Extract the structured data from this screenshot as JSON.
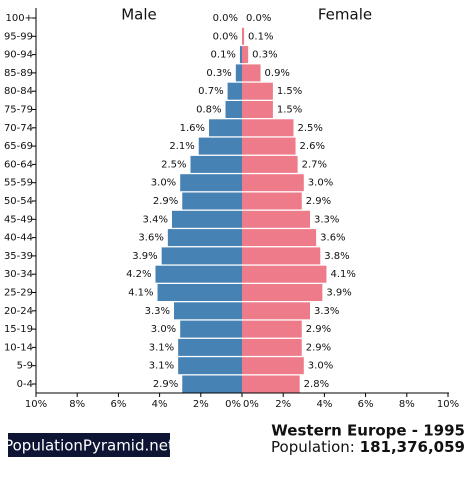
{
  "chart_data": {
    "type": "pyramid",
    "title": "Western Europe - 1995",
    "subtitle_label": "Population:",
    "subtitle_value": "181,376,059",
    "source": "PopulationPyramid.net",
    "categories": [
      "100+",
      "95-99",
      "90-94",
      "85-89",
      "80-84",
      "75-79",
      "70-74",
      "65-69",
      "60-64",
      "55-59",
      "50-54",
      "45-49",
      "40-44",
      "35-39",
      "30-34",
      "25-29",
      "20-24",
      "15-19",
      "10-14",
      "5-9",
      "0-4"
    ],
    "series": [
      {
        "name": "Male",
        "color": "#4682b4",
        "values": [
          0.0,
          0.0,
          0.1,
          0.3,
          0.7,
          0.8,
          1.6,
          2.1,
          2.5,
          3.0,
          2.9,
          3.4,
          3.6,
          3.9,
          4.2,
          4.1,
          3.3,
          3.0,
          3.1,
          3.1,
          2.9
        ],
        "value_labels": [
          "0.0%",
          "0.0%",
          "0.1%",
          "0.3%",
          "0.7%",
          "0.8%",
          "1.6%",
          "2.1%",
          "2.5%",
          "3.0%",
          "2.9%",
          "3.4%",
          "3.6%",
          "3.9%",
          "4.2%",
          "4.1%",
          "3.3%",
          "3.0%",
          "3.1%",
          "3.1%",
          "2.9%"
        ]
      },
      {
        "name": "Female",
        "color": "#ee7b8a",
        "values": [
          0.0,
          0.1,
          0.3,
          0.9,
          1.5,
          1.5,
          2.5,
          2.6,
          2.7,
          3.0,
          2.9,
          3.3,
          3.6,
          3.8,
          4.1,
          3.9,
          3.3,
          2.9,
          2.9,
          3.0,
          2.8
        ],
        "value_labels": [
          "0.0%",
          "0.1%",
          "0.3%",
          "0.9%",
          "1.5%",
          "1.5%",
          "2.5%",
          "2.6%",
          "2.7%",
          "3.0%",
          "2.9%",
          "3.3%",
          "3.6%",
          "3.8%",
          "4.1%",
          "3.9%",
          "3.3%",
          "2.9%",
          "2.9%",
          "3.0%",
          "2.8%"
        ]
      }
    ],
    "xlim": [
      0,
      10
    ],
    "xticks": [
      {
        "value": 0,
        "label": "0%"
      },
      {
        "value": 2,
        "label": "2%"
      },
      {
        "value": 4,
        "label": "4%"
      },
      {
        "value": 6,
        "label": "6%"
      },
      {
        "value": 8,
        "label": "8%"
      },
      {
        "value": 10,
        "label": "10%"
      }
    ]
  }
}
